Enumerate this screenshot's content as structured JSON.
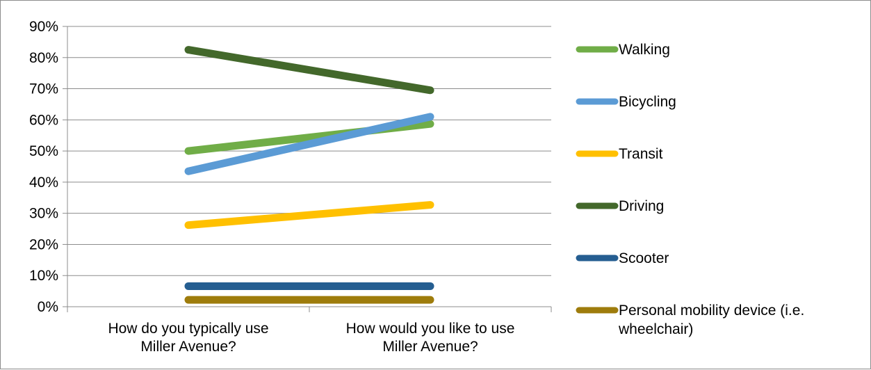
{
  "chart_data": {
    "type": "line",
    "title": "",
    "xlabel": "",
    "ylabel": "",
    "categories": [
      [
        "How do you typically use",
        "Miller Avenue?"
      ],
      [
        "How would you like to use",
        "Miller Avenue?"
      ]
    ],
    "y_ticks": [
      "0%",
      "10%",
      "20%",
      "30%",
      "40%",
      "50%",
      "60%",
      "70%",
      "80%",
      "90%"
    ],
    "ylim": [
      0,
      90
    ],
    "y_unit": "%",
    "grid": true,
    "legend_position": "right",
    "series": [
      {
        "name": "Walking",
        "values": [
          50,
          58.7
        ],
        "color": "#70ad47"
      },
      {
        "name": "Bicycling",
        "values": [
          43.5,
          61
        ],
        "color": "#5b9bd5"
      },
      {
        "name": "Transit",
        "values": [
          26.2,
          32.7
        ],
        "color": "#ffc000"
      },
      {
        "name": "Driving",
        "values": [
          82.5,
          69.5
        ],
        "color": "#43682b"
      },
      {
        "name": "Scooter",
        "values": [
          6.6,
          6.6
        ],
        "color": "#255e91"
      },
      {
        "name": "Personal mobility device (i.e. wheelchair)",
        "legend_lines": [
          "Personal mobility device (i.e.",
          "wheelchair)"
        ],
        "values": [
          2.2,
          2.2
        ],
        "color": "#9e7c0c"
      }
    ]
  }
}
